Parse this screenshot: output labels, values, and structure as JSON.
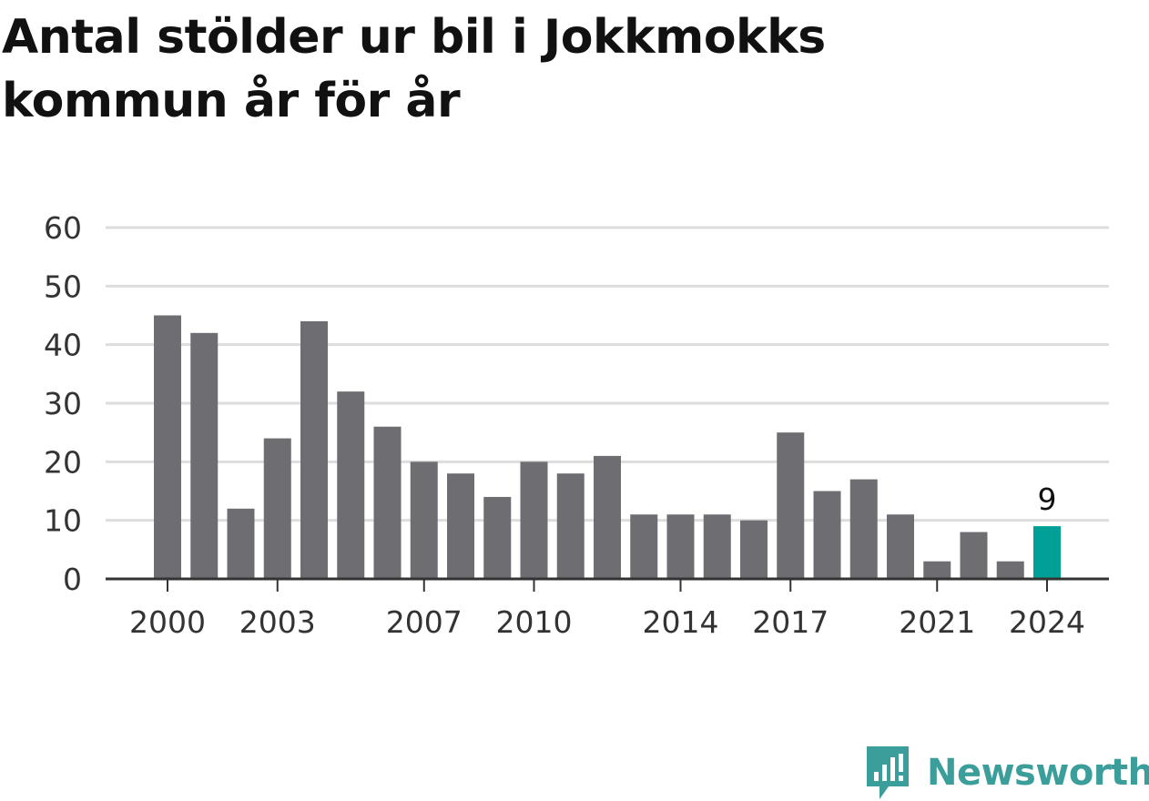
{
  "title": "Antal stölder ur bil i Jokkmokks kommun år för år",
  "brand": {
    "name": "Newsworthy",
    "icon": "newsworthy-logo-icon",
    "color": "#3b9e9a"
  },
  "colors": {
    "bar": "#6e6d72",
    "highlight": "#00a096",
    "grid": "#dddddd",
    "axis": "#333333"
  },
  "chart_data": {
    "type": "bar",
    "title": "Antal stölder ur bil i Jokkmokks kommun år för år",
    "xlabel": "",
    "ylabel": "",
    "categories": [
      2000,
      2001,
      2002,
      2003,
      2004,
      2005,
      2006,
      2007,
      2008,
      2009,
      2010,
      2011,
      2012,
      2013,
      2014,
      2015,
      2016,
      2017,
      2018,
      2019,
      2020,
      2021,
      2022,
      2023,
      2024
    ],
    "values": [
      45,
      42,
      12,
      24,
      44,
      32,
      26,
      20,
      18,
      14,
      20,
      18,
      21,
      11,
      11,
      11,
      10,
      25,
      15,
      17,
      11,
      3,
      8,
      3,
      9
    ],
    "x_tick_labels": [
      "2000",
      "2003",
      "2007",
      "2010",
      "2014",
      "2017",
      "2021",
      "2024"
    ],
    "y_ticks": [
      0,
      10,
      20,
      30,
      40,
      50,
      60
    ],
    "ylim": [
      0,
      60
    ],
    "grid": true,
    "highlight": {
      "category": 2024,
      "label": "9"
    }
  }
}
